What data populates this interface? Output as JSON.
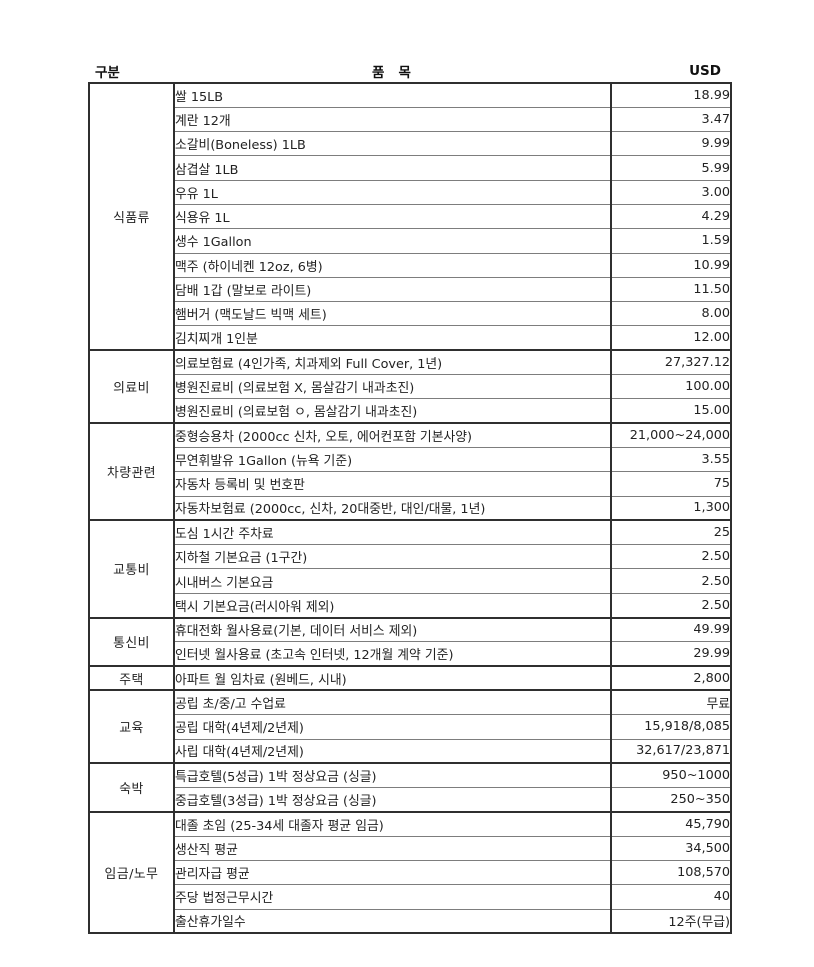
{
  "colors": {
    "background": "#ffffff",
    "border_strong": "#2f2f2f",
    "border_light": "#7d7d7d",
    "text": "#222222"
  },
  "header": {
    "category_label": "구분",
    "item_label": "품   목",
    "usd_label": "USD"
  },
  "table": {
    "sections": [
      {
        "category": "식품류",
        "rows": [
          {
            "item": "쌀 15LB",
            "usd": "18.99"
          },
          {
            "item": "계란 12개",
            "usd": "3.47"
          },
          {
            "item": "소갈비(Boneless) 1LB",
            "usd": "9.99"
          },
          {
            "item": "삼겹살 1LB",
            "usd": "5.99"
          },
          {
            "item": "우유 1L",
            "usd": "3.00"
          },
          {
            "item": "식용유 1L",
            "usd": "4.29"
          },
          {
            "item": "생수 1Gallon",
            "usd": "1.59"
          },
          {
            "item": "맥주 (하이네켄 12oz, 6병)",
            "usd": "10.99"
          },
          {
            "item": "담배 1갑 (말보로 라이트)",
            "usd": "11.50"
          },
          {
            "item": "햄버거 (맥도날드 빅맥 세트)",
            "usd": "8.00"
          },
          {
            "item": "김치찌개 1인분",
            "usd": "12.00"
          }
        ]
      },
      {
        "category": "의료비",
        "rows": [
          {
            "item": "의료보험료 (4인가족, 치과제외 Full Cover, 1년)",
            "usd": "27,327.12"
          },
          {
            "item": "병원진료비 (의료보험 X, 몸살감기 내과초진)",
            "usd": "100.00"
          },
          {
            "item": "병원진료비 (의료보험 ㅇ, 몸살감기 내과초진)",
            "usd": "15.00"
          }
        ]
      },
      {
        "category": "차량관련",
        "rows": [
          {
            "item": "중형승용차 (2000cc 신차, 오토, 에어컨포함 기본사양)",
            "usd": "21,000~24,000"
          },
          {
            "item": "무연휘발유 1Gallon (뉴욕 기준)",
            "usd": "3.55"
          },
          {
            "item": "자동차 등록비 및 번호판",
            "usd": "75"
          },
          {
            "item": "자동차보험료 (2000cc, 신차, 20대중반, 대인/대물, 1년)",
            "usd": "1,300"
          }
        ]
      },
      {
        "category": "교통비",
        "rows": [
          {
            "item": "도심 1시간 주차료",
            "usd": "25"
          },
          {
            "item": "지하철 기본요금 (1구간)",
            "usd": "2.50"
          },
          {
            "item": "시내버스 기본요금",
            "usd": "2.50"
          },
          {
            "item": "택시 기본요금(러시아워 제외)",
            "usd": "2.50"
          }
        ]
      },
      {
        "category": "통신비",
        "rows": [
          {
            "item": "휴대전화 월사용료(기본, 데이터 서비스 제외)",
            "usd": "49.99"
          },
          {
            "item": "인터넷 월사용료 (초고속 인터넷, 12개월 계약 기준)",
            "usd": "29.99"
          }
        ]
      },
      {
        "category": "주택",
        "rows": [
          {
            "item": "아파트 월 임차료 (원베드, 시내)",
            "usd": "2,800"
          }
        ]
      },
      {
        "category": "교육",
        "rows": [
          {
            "item": "공립 초/중/고 수업료",
            "usd": "무료"
          },
          {
            "item": "공립 대학(4년제/2년제)",
            "usd": "15,918/8,085"
          },
          {
            "item": "사립 대학(4년제/2년제)",
            "usd": "32,617/23,871"
          }
        ]
      },
      {
        "category": "숙박",
        "rows": [
          {
            "item": "특급호텔(5성급) 1박 정상요금 (싱글)",
            "usd": "950~1000"
          },
          {
            "item": "중급호텔(3성급) 1박 정상요금 (싱글)",
            "usd": "250~350"
          }
        ]
      },
      {
        "category": "임금/노무",
        "rows": [
          {
            "item": "대졸 초임 (25-34세 대졸자 평균 임금)",
            "usd": "45,790"
          },
          {
            "item": "생산직 평균",
            "usd": "34,500"
          },
          {
            "item": "관리자급 평균",
            "usd": "108,570"
          },
          {
            "item": "주당 법정근무시간",
            "usd": "40"
          },
          {
            "item": "출산휴가일수",
            "usd": "12주(무급)"
          }
        ]
      }
    ]
  }
}
